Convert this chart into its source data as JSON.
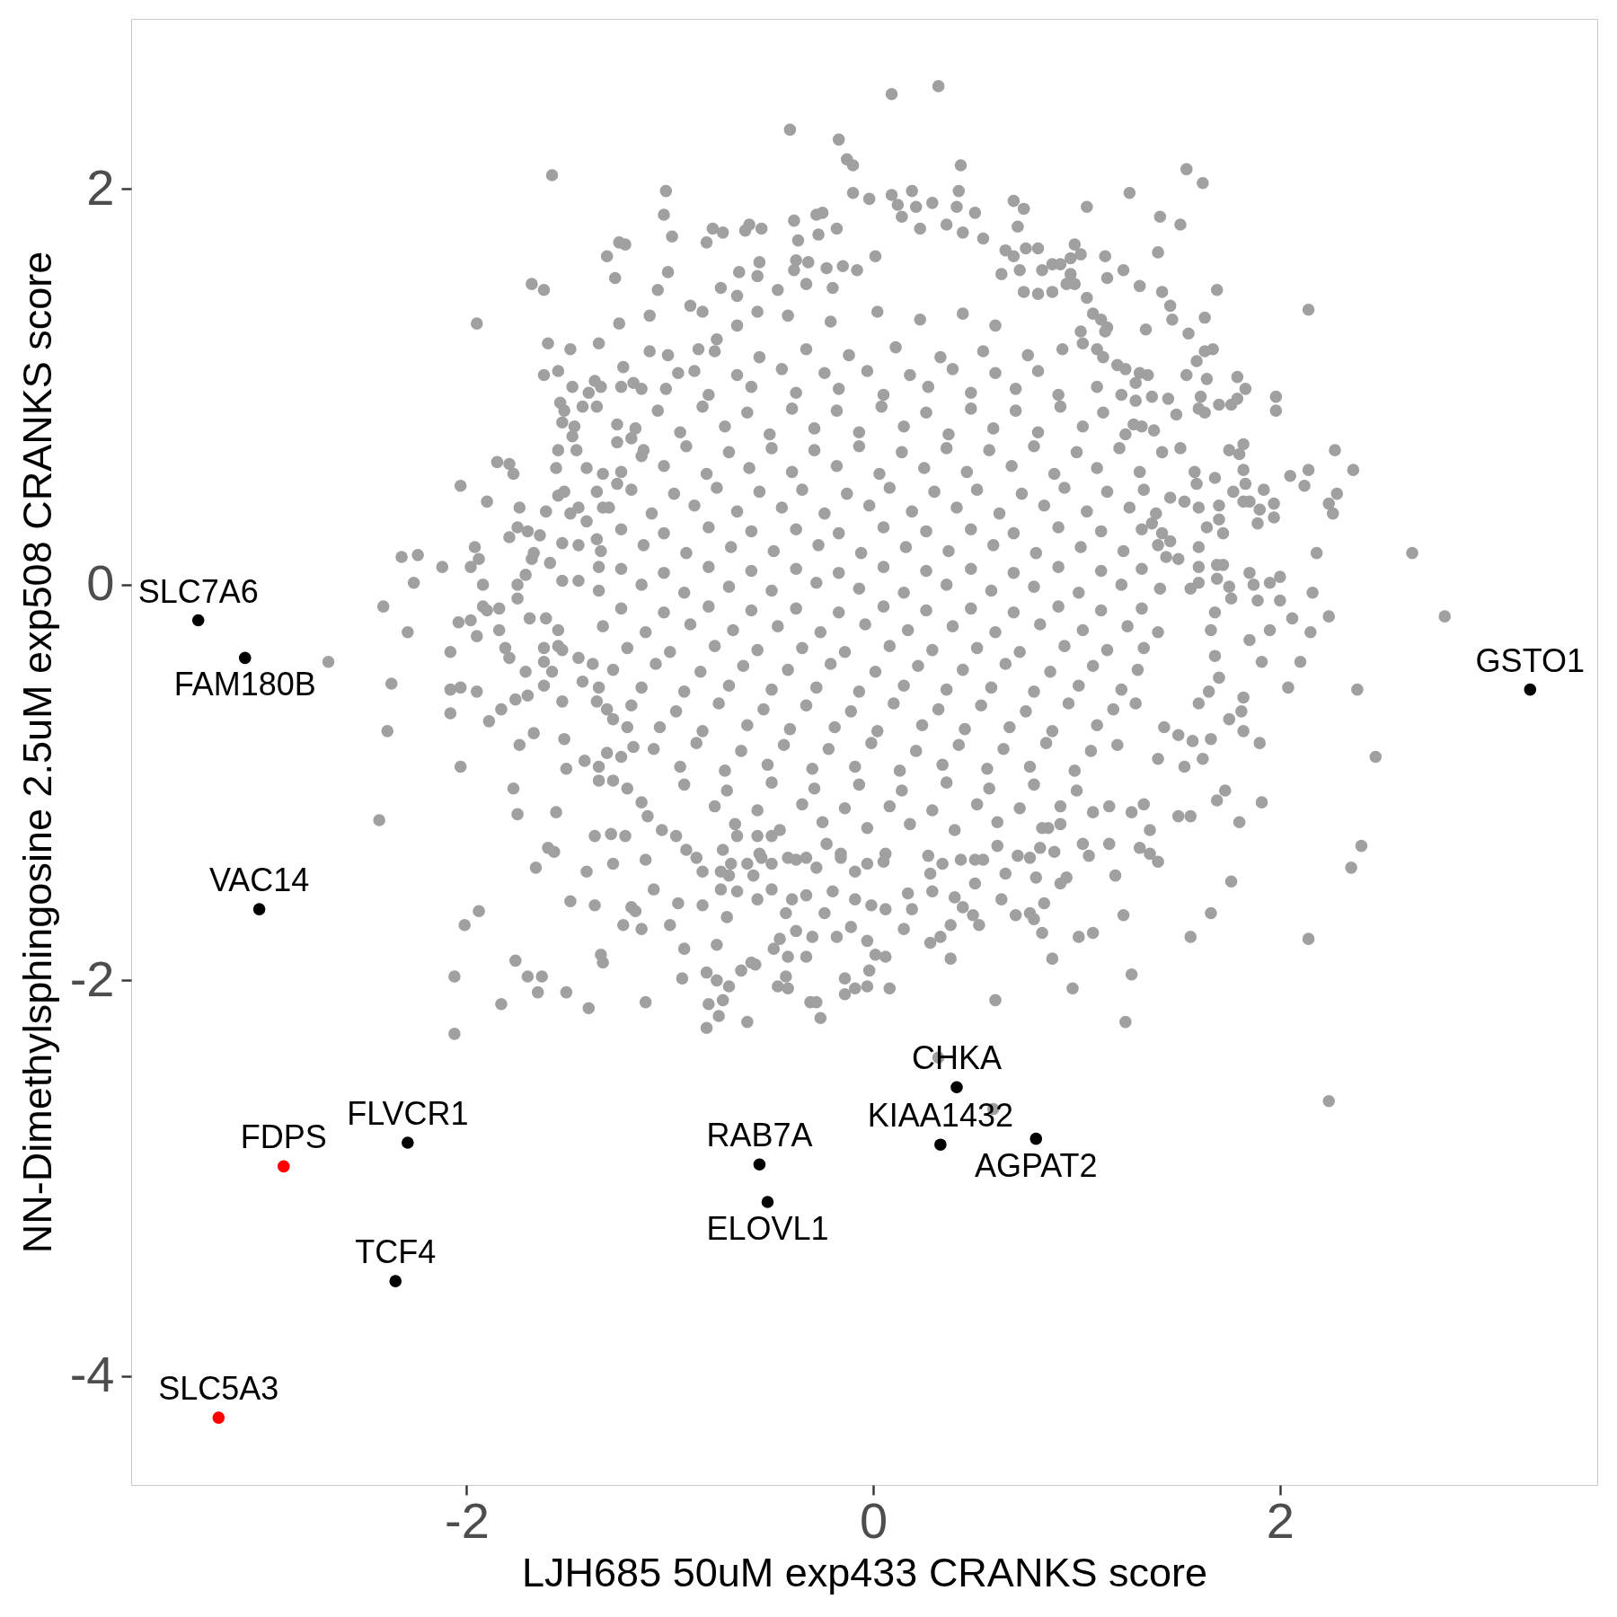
{
  "chart_data": {
    "type": "scatter",
    "xlabel": "LJH685 50uM exp433 CRANKS score",
    "ylabel": "NN-Dimethylsphingosine 2.5uM exp508 CRANKS score",
    "xlim": [
      -3.65,
      3.56
    ],
    "ylim": [
      -4.55,
      2.86
    ],
    "xticks": [
      -2,
      0,
      2
    ],
    "yticks": [
      -4,
      -2,
      0,
      2
    ],
    "marker": "circle",
    "series": [
      {
        "color": "#a0a0a0",
        "x": [
          0.09,
          -0.41,
          -0.17,
          -0.13,
          -0.1,
          -1.58,
          -1.02,
          -1.03,
          -0.99,
          -0.1,
          -0.02,
          0.09,
          -0.39,
          -0.37,
          -0.27,
          -0.28,
          -0.25,
          -0.18,
          -0.82,
          -0.79,
          -0.74,
          -0.63,
          -0.61,
          -0.55,
          -1.31,
          -1.25,
          -1.22,
          -1.27,
          -1.68,
          -1.62,
          -1.95,
          -1.6,
          -1.49,
          -1.35,
          -1.25,
          -1.62,
          -1.55,
          -1.48,
          -1.4,
          -1.37,
          -1.34,
          -1.36,
          -1.54,
          -1.52,
          -1.53,
          -1.47,
          -1.48,
          -1.43,
          -1.85,
          -1.79,
          -1.77,
          -2.03,
          -1.9,
          -1.74,
          -1.61,
          -1.55,
          -1.46,
          -1.56,
          -1.41,
          -2.32,
          -2.24,
          -2.12,
          -2.26,
          -1.96,
          -1.94,
          -1.98,
          -1.92,
          -1.79,
          -1.75,
          -1.7,
          -1.64,
          -1.71,
          -1.75,
          -1.23,
          -1.26,
          -1.14,
          -1.1,
          -1.06,
          -1.01,
          -0.9,
          -0.84,
          -0.75,
          -0.67,
          -0.66,
          -0.57,
          -0.56,
          -0.39,
          -0.38,
          -0.32,
          -0.23,
          -0.15,
          -1.55,
          -1.52,
          -1.49,
          -1.45,
          -1.41,
          -1.36,
          -1.45,
          -1.53,
          -1.59,
          -1.68,
          -1.67,
          -1.53,
          -1.45,
          -1.35,
          -1.33,
          -1.26,
          -1.36,
          -1.33,
          -1.26,
          -1.19,
          -1.14,
          -1.24,
          -1.18,
          -1.1,
          -1.01,
          -0.96,
          -0.86,
          -0.77,
          -0.67,
          -0.57,
          -0.47,
          -0.33,
          -0.2,
          -0.08,
          0.01,
          0.32,
          0.43,
          0.19,
          0.42,
          0.21,
          0.29,
          0.41,
          0.5,
          0.69,
          0.74,
          0.71,
          1.05,
          1.26,
          1.54,
          1.62,
          1.41,
          1.51,
          1.4,
          1.69,
          2.14,
          1.14,
          1.23,
          1.05,
          1.15,
          1.31,
          1.42,
          1.46,
          1.47,
          1.55,
          1.63,
          1.14,
          1.34,
          1.59,
          1.63,
          1.67,
          1.54,
          1.64,
          1.79,
          1.83,
          1.79,
          1.76,
          1.98,
          1.98,
          1.7,
          1.61,
          1.6,
          1.63,
          1.45,
          1.49,
          2.27,
          2.36,
          2.28,
          2.24,
          2.26,
          2.05,
          2.14,
          2.12,
          1.75,
          1.82,
          1.8,
          1.82,
          1.83,
          1.77,
          1.82,
          1.85,
          1.92,
          1.97,
          1.97,
          1.9,
          1.89,
          2.18,
          2.65,
          2.16,
          1.85,
          1.87,
          1.95,
          2.0,
          1.69,
          1.72,
          1.69,
          1.75,
          1.58,
          1.59,
          1.68,
          1.7,
          1.7,
          1.72,
          1.6,
          1.44,
          1.5,
          0.12,
          0.14,
          0.23,
          0.36,
          0.44,
          0.54,
          0.65,
          0.69,
          0.75,
          0.81,
          0.83,
          0.88,
          0.92,
          0.97,
          1.02,
          0.99,
          0.63,
          0.72,
          0.88,
          0.97,
          0.74,
          0.81,
          0.95,
          0.99,
          1.08,
          1.12,
          1.15,
          1.02,
          1.03,
          1.1,
          1.13,
          1.2,
          1.24,
          1.31,
          1.35,
          1.29,
          1.22,
          1.29,
          1.37,
          1.28,
          1.32,
          1.38,
          1.42,
          1.51,
          1.46,
          1.53,
          1.6,
          1.64,
          1.37,
          1.42,
          1.46,
          1.6,
          1.6,
          1.56,
          -2.41,
          -2.29,
          -2.37,
          -2.39,
          -2.43,
          -2.08,
          -2.08,
          -2.03,
          -1.95,
          -2.08,
          -2.04,
          -1.98,
          -1.92,
          -1.9,
          -1.84,
          -1.95,
          -1.84,
          -1.89,
          -2.03,
          -1.77,
          -1.75,
          -1.56,
          -1.66,
          -1.6,
          -1.57,
          -1.41,
          -1.37,
          -1.29,
          -1.22,
          -1.49,
          -1.37,
          -1.94,
          -2.01,
          -1.76,
          -2.06,
          -1.7,
          -1.63,
          -1.65,
          -1.51,
          -1.83,
          -1.4,
          -2.06,
          -1.34,
          -1.33,
          -1.23,
          -1.14,
          -1.19,
          -1.17,
          -1.12,
          -1.0,
          -0.93,
          -0.94,
          -0.77,
          -0.82,
          -0.77,
          -0.71,
          -0.65,
          -0.6,
          -0.58,
          -0.81,
          -0.74,
          -0.76,
          -0.82,
          -0.62,
          -0.72,
          -0.49,
          -0.46,
          -0.42,
          -0.33,
          -0.43,
          -0.47,
          -0.42,
          -0.31,
          -0.28,
          -0.26,
          -0.38,
          -0.3,
          -0.24,
          -0.18,
          -0.11,
          -0.14,
          -0.09,
          -0.03,
          -0.14,
          -0.03,
          0.01,
          0.06,
          -0.02,
          0.08,
          -0.56,
          -0.71,
          -0.59,
          -0.84,
          -0.96,
          -1.08,
          -1.12,
          -1.28,
          -1.51,
          -1.42,
          -1.35,
          -1.74,
          -1.67,
          -1.52,
          -1.83,
          -1.76,
          -1.7,
          -1.71,
          -1.79,
          -1.81,
          -1.62,
          -1.62,
          -1.58,
          -1.62,
          -1.53,
          -1.75,
          -1.69,
          -1.61,
          -1.55,
          -1.55,
          -2.68,
          -1.53,
          -1.45,
          -1.38,
          -1.43,
          -1.35,
          -1.36,
          -1.31,
          -1.28,
          -1.21,
          -1.18,
          -1.24,
          -1.31,
          -1.35,
          -1.28,
          -1.21,
          -1.14,
          -1.11,
          -1.04,
          -0.97,
          -0.92,
          -0.87,
          -0.84,
          -0.74,
          -0.67,
          -0.57,
          -0.5,
          -0.75,
          -0.7,
          -0.62,
          -0.55,
          -0.5,
          -0.42,
          -0.33,
          -0.28,
          -0.23,
          -0.16,
          -0.09,
          -0.03,
          0.06,
          -0.5,
          -0.4,
          -0.33,
          -0.57,
          -0.43,
          -0.2,
          -0.09,
          -0.01,
          0.06,
          -0.75,
          -0.67,
          2.81,
          2.47,
          2.38,
          2.04,
          2.1,
          2.15,
          2.24,
          2.06,
          1.95,
          1.85,
          1.91,
          1.82,
          1.81,
          1.82,
          1.9,
          1.91,
          1.8,
          1.69,
          1.73,
          2.35,
          2.4,
          1.5,
          1.56,
          1.36,
          1.4,
          1.36,
          1.31,
          1.19,
          1.16,
          1.03,
          1.06,
          0.95,
          0.92,
          0.8,
          0.84,
          0.83,
          0.79,
          0.7,
          0.63,
          0.38,
          0.38,
          0.28,
          0.33,
          0.19,
          0.15,
          1.66,
          1.56,
          1.76,
          1.23,
          2.14,
          1.24,
          0.98,
          1.27,
          0.6,
          0.88,
          1.01,
          1.08,
          1.33,
          1.27,
          1.08,
          1.66,
          1.62,
          1.53,
          1.4,
          1.57,
          1.7,
          1.65,
          1.75,
          1.6,
          2.24,
          0.32,
          0.59,
          0.43,
          0.54,
          0.61,
          0.65,
          0.5,
          0.28,
          0.34,
          0.17,
          0.29,
          0.4,
          0.44,
          0.49,
          0.52,
          0.77,
          0.71,
          0.77,
          0.82,
          0.89,
          0.92,
          0.86,
          1.16,
          1.76,
          1.89,
          2.0,
          1.68,
          1.66,
          1.68,
          1.5,
          1.43,
          -0.42,
          -0.21,
          0.02,
          0.23,
          0.44,
          0.6,
          -0.78,
          -0.56,
          -0.33,
          -0.12,
          0.11,
          0.33,
          0.54,
          0.76,
          0.93,
          -1.02,
          -0.81,
          -0.6,
          -0.38,
          -0.17,
          0.05,
          0.27,
          0.48,
          0.7,
          0.91,
          1.1,
          -1.17,
          -0.95,
          -0.73,
          -0.51,
          -0.29,
          -0.07,
          0.15,
          0.37,
          0.59,
          0.81,
          1.03,
          1.24,
          -1.24,
          -1.03,
          -0.82,
          -0.61,
          -0.4,
          -0.18,
          0.03,
          0.25,
          0.46,
          0.68,
          0.89,
          1.1,
          1.31,
          -1.3,
          -1.09,
          -0.88,
          -0.67,
          -0.45,
          -0.24,
          -0.02,
          0.19,
          0.41,
          0.62,
          0.84,
          1.05,
          1.26,
          1.39,
          -1.34,
          -1.13,
          -0.92,
          -0.7,
          -0.49,
          -0.27,
          -0.06,
          0.16,
          0.37,
          0.59,
          0.8,
          1.02,
          1.23,
          1.4,
          -1.35,
          -1.14,
          -0.93,
          -0.71,
          -0.5,
          -0.28,
          -0.07,
          0.15,
          0.36,
          0.58,
          0.79,
          1.01,
          1.22,
          1.41,
          -1.33,
          -1.12,
          -0.9,
          -0.69,
          -0.47,
          -0.26,
          -0.04,
          0.17,
          0.39,
          0.6,
          0.82,
          1.03,
          1.25,
          1.4,
          -1.28,
          -1.07,
          -0.85,
          -0.64,
          -0.42,
          -0.21,
          0.01,
          0.22,
          0.44,
          0.65,
          0.87,
          1.08,
          1.3,
          -1.19,
          -0.97,
          -0.76,
          -0.54,
          -0.33,
          -0.11,
          0.1,
          0.32,
          0.53,
          0.75,
          0.96,
          1.18,
          1.29,
          -1.08,
          -0.87,
          -0.65,
          -0.44,
          -0.22,
          -0.01,
          0.21,
          0.42,
          0.64,
          0.85,
          1.07,
          1.2,
          -0.93,
          -0.72,
          -0.5,
          -0.29,
          -0.07,
          0.14,
          0.36,
          0.57,
          0.79,
          1.0,
          -0.68,
          -0.46,
          -0.25,
          -0.03,
          0.18,
          0.4,
          0.61,
          0.83,
          -0.38,
          -0.16,
          0.05,
          0.27,
          0.5,
          -0.88,
          -0.67,
          -0.45,
          -0.24,
          -0.03,
          0.18,
          0.39,
          0.6,
          0.81,
          -1.06,
          -0.84,
          -0.62,
          -0.4,
          -0.18,
          0.04,
          0.26,
          0.48,
          0.7,
          0.92,
          1.13,
          -1.13,
          -0.92,
          -0.71,
          -0.5,
          -0.29,
          -0.07,
          0.14,
          0.36,
          0.57,
          0.79,
          1.0,
          1.21,
          -1.19,
          -0.98,
          -0.77,
          -0.56,
          -0.35,
          -0.13,
          0.08,
          0.3,
          0.51,
          0.73,
          0.94,
          1.15,
          1.33,
          -1.24,
          -1.03,
          -0.81,
          -0.6,
          -0.38,
          -0.17,
          0.05,
          0.26,
          0.48,
          0.69,
          0.91,
          1.12,
          1.32,
          -1.24,
          -1.03,
          -0.81,
          -0.6,
          -0.38,
          -0.17,
          0.05,
          0.26,
          0.48,
          0.69,
          0.91,
          1.12,
          1.32,
          -1.24,
          -1.03,
          -0.81,
          -0.6,
          -0.38,
          -0.17,
          0.05,
          0.26,
          0.48,
          0.69,
          0.91,
          1.12,
          1.32,
          -1.21,
          -1.0,
          -0.78,
          -0.57,
          -0.35,
          -0.14,
          0.08,
          0.29,
          0.51,
          0.72,
          0.94,
          1.15,
          1.33,
          -1.14,
          -0.93,
          -0.71,
          -0.5,
          -0.28,
          -0.07,
          0.15,
          0.36,
          0.58,
          0.79,
          1.01,
          1.22,
          -1.05,
          -0.84,
          -0.62,
          -0.41,
          -0.19,
          0.02,
          0.24,
          0.45,
          0.67,
          0.88,
          1.1,
          -0.95,
          -0.73,
          -0.52,
          -0.3,
          -0.09,
          0.13,
          0.34,
          0.56,
          0.77,
          0.99,
          -0.78,
          -0.57,
          -0.35,
          -0.14,
          0.08,
          0.29,
          0.51,
          0.72,
          0.92
        ],
        "values": [
          2.48,
          2.3,
          2.25,
          2.15,
          2.12,
          2.07,
          1.99,
          1.87,
          1.76,
          1.98,
          1.95,
          1.97,
          1.84,
          1.74,
          1.77,
          1.87,
          1.88,
          1.8,
          1.73,
          1.8,
          1.78,
          1.79,
          1.82,
          1.8,
          1.66,
          1.73,
          1.72,
          1.55,
          1.52,
          1.49,
          1.32,
          1.22,
          1.19,
          1.22,
          1.32,
          1.06,
          1.08,
          1.0,
          0.97,
          1.03,
          1.0,
          0.9,
          0.92,
          0.88,
          0.82,
          0.8,
          0.75,
          0.9,
          0.62,
          0.61,
          0.56,
          0.5,
          0.42,
          0.39,
          0.37,
          0.68,
          0.68,
          0.59,
          0.59,
          0.14,
          0.15,
          0.09,
          0.01,
          0.19,
          0.13,
          0.09,
          0.0,
          0.24,
          0.29,
          0.27,
          0.25,
          0.05,
          0.0,
          1.1,
          0.72,
          0.99,
          1.36,
          1.49,
          1.58,
          1.41,
          1.38,
          1.5,
          1.46,
          1.58,
          1.56,
          1.63,
          1.59,
          1.64,
          1.63,
          1.6,
          1.61,
          0.45,
          0.47,
          0.36,
          0.39,
          0.32,
          0.23,
          0.2,
          0.21,
          0.11,
          0.13,
          0.16,
          0.02,
          0.02,
          0.09,
          0.56,
          0.51,
          0.47,
          0.39,
          0.81,
          0.74,
          0.65,
          1.0,
          1.02,
          1.18,
          1.16,
          1.07,
          1.19,
          1.24,
          1.31,
          1.38,
          1.49,
          1.52,
          1.5,
          1.59,
          1.66,
          2.52,
          2.12,
          1.99,
          1.99,
          1.91,
          1.93,
          1.91,
          1.88,
          1.94,
          1.9,
          1.81,
          1.91,
          1.98,
          2.1,
          2.03,
          1.86,
          1.82,
          1.68,
          1.49,
          1.39,
          1.66,
          1.59,
          1.45,
          1.55,
          1.51,
          1.48,
          1.41,
          1.34,
          1.27,
          1.35,
          1.28,
          1.29,
          1.13,
          1.18,
          1.19,
          1.06,
          1.04,
          1.05,
          0.99,
          0.94,
          0.91,
          0.95,
          0.88,
          0.91,
          0.95,
          0.89,
          0.87,
          0.94,
          0.86,
          0.68,
          0.58,
          0.46,
          0.41,
          0.36,
          0.55,
          0.58,
          0.5,
          0.68,
          0.71,
          0.66,
          0.58,
          0.51,
          0.47,
          0.42,
          0.42,
          0.48,
          0.41,
          0.34,
          0.38,
          0.31,
          0.16,
          0.16,
          -0.04,
          0.06,
          0.0,
          0.01,
          0.04,
          0.1,
          0.1,
          0.03,
          -0.01,
          0.57,
          0.51,
          0.54,
          0.4,
          0.33,
          0.26,
          0.19,
          0.14,
          0.13,
          1.92,
          1.86,
          1.8,
          1.82,
          1.78,
          1.75,
          1.69,
          1.66,
          1.7,
          1.7,
          1.59,
          1.62,
          1.62,
          1.65,
          1.67,
          1.72,
          1.57,
          1.59,
          1.48,
          1.57,
          1.48,
          1.47,
          1.52,
          1.52,
          1.37,
          1.34,
          1.3,
          1.28,
          1.22,
          1.19,
          1.15,
          1.11,
          1.09,
          1.07,
          1.06,
          1.02,
          0.96,
          0.93,
          0.95,
          0.81,
          0.8,
          0.78,
          0.67,
          0.69,
          0.44,
          0.42,
          0.39,
          0.29,
          0.31,
          0.26,
          0.22,
          0.09,
          0.01,
          -0.02,
          -0.11,
          -0.24,
          -0.5,
          -0.74,
          -1.19,
          -0.34,
          -0.53,
          -0.52,
          -0.54,
          -0.65,
          -0.19,
          -0.18,
          -0.11,
          -0.13,
          -0.12,
          -0.26,
          -0.23,
          -0.69,
          -0.92,
          -1.03,
          -1.16,
          -1.15,
          -1.43,
          -1.33,
          -1.35,
          -1.45,
          -1.27,
          -1.26,
          -1.27,
          -1.6,
          -1.62,
          -1.65,
          -1.72,
          -1.9,
          -1.98,
          -1.98,
          -1.98,
          -2.06,
          -2.06,
          -2.12,
          -2.14,
          -2.27,
          -1.87,
          -1.91,
          -1.72,
          -1.74,
          -1.63,
          -1.65,
          -2.11,
          -1.72,
          -1.84,
          -1.99,
          -1.82,
          -1.96,
          -2.0,
          -2.03,
          -1.95,
          -1.91,
          -1.92,
          -2.12,
          -2.1,
          -2.18,
          -2.24,
          -2.21,
          -1.68,
          -1.84,
          -1.79,
          -1.88,
          -1.88,
          -1.98,
          -2.03,
          -2.04,
          -2.11,
          -2.11,
          -2.19,
          -1.75,
          -1.78,
          -1.66,
          -1.78,
          -1.73,
          -1.99,
          -2.04,
          -2.03,
          -2.07,
          -1.8,
          -1.87,
          -1.88,
          -1.95,
          -2.04,
          -1.36,
          -1.47,
          -1.47,
          -1.62,
          -1.61,
          -1.54,
          -1.39,
          -1.41,
          -0.93,
          -0.89,
          -0.92,
          -0.81,
          -0.75,
          -0.78,
          -0.63,
          -0.58,
          -0.56,
          -0.44,
          -0.37,
          -0.32,
          -0.32,
          -0.39,
          -0.44,
          -0.51,
          -0.59,
          -0.07,
          -0.17,
          -0.17,
          -0.23,
          -0.31,
          -0.39,
          -0.33,
          -0.37,
          -0.4,
          -0.49,
          -0.52,
          -0.59,
          -0.63,
          -0.68,
          -0.72,
          -0.82,
          -0.87,
          -0.85,
          -0.99,
          -0.99,
          -1.03,
          -1.1,
          -1.17,
          -1.24,
          -1.27,
          -1.34,
          -1.38,
          -1.45,
          -1.34,
          -1.27,
          -1.27,
          -1.27,
          -1.45,
          -1.41,
          -1.41,
          -1.38,
          -1.41,
          -1.38,
          -1.38,
          -1.43,
          -1.31,
          -1.38,
          -1.45,
          -1.41,
          -1.36,
          -1.54,
          -1.59,
          -1.57,
          -1.59,
          -1.66,
          -1.55,
          -1.59,
          -1.62,
          -1.64,
          -1.54,
          -1.55,
          -0.16,
          -0.87,
          -0.53,
          -0.52,
          -0.39,
          -0.24,
          -0.16,
          -0.17,
          -0.23,
          -0.28,
          -0.39,
          -0.57,
          -0.64,
          -0.74,
          -0.8,
          -1.1,
          -1.2,
          -1.09,
          -1.04,
          -1.43,
          -1.32,
          -1.17,
          -1.17,
          -1.24,
          -1.4,
          -1.36,
          -1.33,
          -1.47,
          -1.31,
          -1.31,
          -1.37,
          -1.48,
          -1.51,
          -1.48,
          -1.61,
          -1.76,
          -1.69,
          -1.67,
          -1.59,
          -1.72,
          -1.89,
          -1.81,
          -1.78,
          -1.64,
          -1.74,
          -1.66,
          -1.78,
          -1.5,
          -1.67,
          -1.79,
          -2.21,
          -2.04,
          -1.97,
          -2.1,
          -1.89,
          -1.78,
          -1.76,
          -1.11,
          -1.15,
          -1.15,
          -0.78,
          -0.88,
          -0.92,
          -0.88,
          -0.79,
          -0.47,
          -0.54,
          -0.68,
          -0.6,
          -2.61,
          -2.39,
          -2.65,
          -1.39,
          -1.39,
          -1.32,
          -1.46,
          -1.51,
          -1.46,
          -1.41,
          -1.56,
          -1.55,
          -1.58,
          -1.63,
          -1.67,
          -1.72,
          -1.66,
          -1.37,
          -1.38,
          -1.33,
          -1.35,
          -1.21,
          -1.23,
          -1.12,
          -0.07,
          -0.08,
          -0.08,
          -0.14,
          -0.23,
          -0.36,
          -0.76,
          -0.72,
          1.36,
          1.33,
          1.38,
          1.34,
          1.37,
          1.31,
          1.18,
          1.15,
          1.19,
          1.16,
          1.2,
          1.15,
          1.18,
          1.16,
          1.19,
          0.99,
          0.96,
          1.0,
          0.97,
          0.99,
          0.96,
          1.0,
          0.97,
          0.99,
          0.96,
          1.0,
          0.79,
          0.77,
          0.8,
          0.76,
          0.79,
          0.77,
          0.8,
          0.76,
          0.79,
          0.77,
          0.8,
          0.76,
          0.57,
          0.6,
          0.56,
          0.59,
          0.57,
          0.6,
          0.56,
          0.59,
          0.57,
          0.6,
          0.56,
          0.59,
          0.57,
          0.39,
          0.36,
          0.4,
          0.37,
          0.39,
          0.36,
          0.4,
          0.37,
          0.39,
          0.36,
          0.4,
          0.37,
          0.39,
          0.36,
          0.17,
          0.2,
          0.16,
          0.19,
          0.17,
          0.2,
          0.16,
          0.19,
          0.17,
          0.2,
          0.16,
          0.19,
          0.17,
          0.2,
          -0.03,
          0.0,
          -0.04,
          -0.01,
          -0.03,
          0.01,
          -0.02,
          -0.04,
          0.0,
          -0.03,
          -0.01,
          -0.04,
          0.0,
          -0.02,
          -0.21,
          -0.24,
          -0.2,
          -0.23,
          -0.21,
          -0.24,
          -0.2,
          -0.23,
          -0.21,
          -0.24,
          -0.2,
          -0.23,
          -0.21,
          -0.24,
          -0.43,
          -0.4,
          -0.44,
          -0.41,
          -0.43,
          -0.4,
          -0.44,
          -0.41,
          -0.43,
          -0.4,
          -0.44,
          -0.41,
          -0.43,
          -0.61,
          -0.64,
          -0.6,
          -0.63,
          -0.61,
          -0.64,
          -0.6,
          -0.63,
          -0.61,
          -0.64,
          -0.6,
          -0.63,
          -0.6,
          -0.83,
          -0.8,
          -0.84,
          -0.81,
          -0.83,
          -0.8,
          -0.84,
          -0.81,
          -0.83,
          -0.8,
          -0.84,
          -0.81,
          -1.01,
          -1.04,
          -1.0,
          -1.03,
          -1.01,
          -1.04,
          -1.0,
          -1.03,
          -1.01,
          -1.04,
          -1.21,
          -1.24,
          -1.2,
          -1.23,
          -1.21,
          -1.24,
          -1.2,
          -1.23,
          -1.39,
          -1.36,
          -1.4,
          -1.37,
          -1.39,
          1.08,
          1.06,
          1.09,
          1.07,
          1.08,
          1.06,
          1.09,
          1.07,
          1.08,
          0.88,
          0.9,
          0.87,
          0.89,
          0.88,
          0.9,
          0.87,
          0.89,
          0.88,
          0.9,
          0.87,
          0.68,
          0.7,
          0.67,
          0.69,
          0.68,
          0.7,
          0.67,
          0.69,
          0.68,
          0.7,
          0.67,
          0.69,
          0.48,
          0.46,
          0.49,
          0.47,
          0.48,
          0.46,
          0.49,
          0.47,
          0.48,
          0.46,
          0.49,
          0.47,
          0.48,
          0.28,
          0.26,
          0.29,
          0.27,
          0.28,
          0.26,
          0.29,
          0.27,
          0.28,
          0.26,
          0.29,
          0.27,
          0.28,
          0.08,
          0.06,
          0.09,
          0.07,
          0.08,
          0.06,
          0.09,
          0.07,
          0.08,
          0.06,
          0.09,
          0.07,
          0.08,
          -0.12,
          -0.14,
          -0.11,
          -0.13,
          -0.12,
          -0.14,
          -0.11,
          -0.13,
          -0.12,
          -0.14,
          -0.11,
          -0.13,
          -0.12,
          -0.32,
          -0.34,
          -0.31,
          -0.33,
          -0.32,
          -0.34,
          -0.31,
          -0.33,
          -0.32,
          -0.34,
          -0.31,
          -0.33,
          -0.32,
          -0.52,
          -0.54,
          -0.51,
          -0.53,
          -0.52,
          -0.54,
          -0.51,
          -0.53,
          -0.52,
          -0.54,
          -0.51,
          -0.53,
          -0.72,
          -0.74,
          -0.71,
          -0.73,
          -0.72,
          -0.74,
          -0.71,
          -0.73,
          -0.72,
          -0.74,
          -0.71,
          -0.92,
          -0.94,
          -0.91,
          -0.93,
          -0.92,
          -0.94,
          -0.91,
          -0.93,
          -0.92,
          -0.94,
          -1.12,
          -1.14,
          -1.11,
          -1.13,
          -1.12,
          -1.14,
          -1.11,
          -1.13,
          -1.12
        ]
      },
      {
        "color": "#000000",
        "x": [
          -3.32,
          -3.09,
          -3.02,
          -2.29,
          -2.35,
          -0.56,
          -0.52,
          0.33,
          0.41,
          0.8,
          3.23
        ],
        "values": [
          -0.18,
          -0.37,
          -1.64,
          -2.82,
          -3.52,
          -2.93,
          -3.12,
          -2.83,
          -2.54,
          -2.8,
          -0.53
        ]
      },
      {
        "color": "#ff0000",
        "x": [
          -2.9,
          -3.22
        ],
        "values": [
          -2.94,
          -4.21
        ]
      }
    ],
    "annotations": [
      {
        "text": "SLC7A6",
        "x": -3.32,
        "y": -0.18
      },
      {
        "text": "FAM180B",
        "x": -3.09,
        "y": -0.37
      },
      {
        "text": "VAC14",
        "x": -3.02,
        "y": -1.64
      },
      {
        "text": "FLVCR1",
        "x": -2.29,
        "y": -2.82
      },
      {
        "text": "FDPS",
        "x": -2.9,
        "y": -2.94
      },
      {
        "text": "TCF4",
        "x": -2.35,
        "y": -3.52
      },
      {
        "text": "SLC5A3",
        "x": -3.22,
        "y": -4.21
      },
      {
        "text": "RAB7A",
        "x": -0.56,
        "y": -2.93
      },
      {
        "text": "ELOVL1",
        "x": -0.52,
        "y": -3.12
      },
      {
        "text": "CHKA",
        "x": 0.41,
        "y": -2.54
      },
      {
        "text": "KIAA1432",
        "x": 0.33,
        "y": -2.83
      },
      {
        "text": "AGPAT2",
        "x": 0.8,
        "y": -2.8
      },
      {
        "text": "GSTO1",
        "x": 3.23,
        "y": -0.53
      }
    ]
  }
}
